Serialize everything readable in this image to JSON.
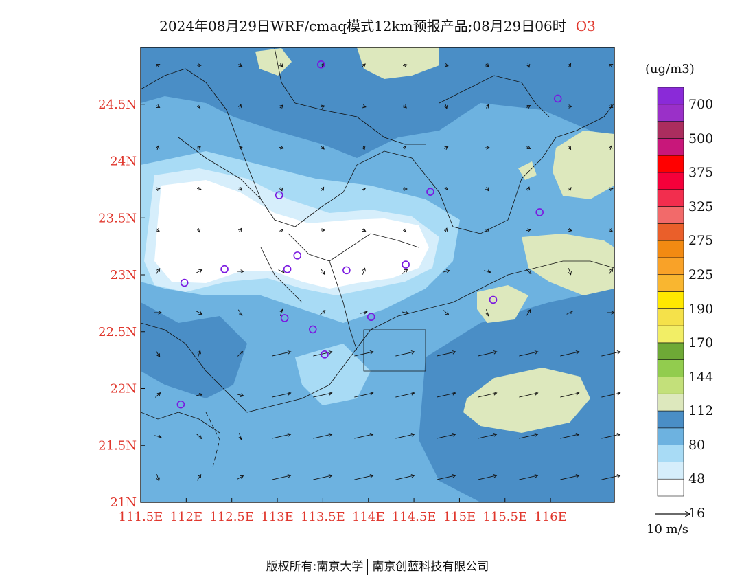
{
  "title": {
    "text": "2024年08月29日WRF/cmaq模式12km预报产品;08月29日06时",
    "species": "O3"
  },
  "map": {
    "lon_range": [
      111.5,
      116.7
    ],
    "lat_range": [
      21.0,
      25.0
    ],
    "lon_ticks": [
      "111.5E",
      "112E",
      "112.5E",
      "113E",
      "113.5E",
      "114E",
      "114.5E",
      "115E",
      "115.5E",
      "116E"
    ],
    "lat_ticks": [
      "21N",
      "21.5N",
      "22N",
      "22.5N",
      "23N",
      "23.5N",
      "24N",
      "24.5N"
    ],
    "station_markers": [
      [
        113.48,
        24.85
      ],
      [
        116.08,
        24.55
      ],
      [
        113.02,
        23.7
      ],
      [
        114.68,
        23.73
      ],
      [
        115.88,
        23.55
      ],
      [
        112.42,
        23.05
      ],
      [
        113.22,
        23.17
      ],
      [
        113.11,
        23.05
      ],
      [
        113.76,
        23.04
      ],
      [
        114.41,
        23.09
      ],
      [
        111.98,
        22.93
      ],
      [
        113.08,
        22.62
      ],
      [
        113.39,
        22.52
      ],
      [
        114.03,
        22.63
      ],
      [
        115.37,
        22.78
      ],
      [
        113.52,
        22.3
      ],
      [
        111.94,
        21.86
      ]
    ]
  },
  "colorbar": {
    "unit": "(ug/m3)",
    "labels": [
      "700",
      "500",
      "375",
      "325",
      "275",
      "225",
      "190",
      "170",
      "144",
      "112",
      "80",
      "48",
      "16"
    ],
    "colors": [
      "#ffffff",
      "#d6eefb",
      "#a8dbf5",
      "#6db2e0",
      "#4a8ec6",
      "#dde8bd",
      "#c3e07a",
      "#92cc4e",
      "#6ea936",
      "#f2ee66",
      "#f5e14a",
      "#ffe800",
      "#f9b630",
      "#f9a228",
      "#f28a12",
      "#ea5f2a",
      "#f26a6a",
      "#f22e4e",
      "#f5003a",
      "#ff0000",
      "#c8177a",
      "#ab2d5e",
      "#9a30c8",
      "#8a2ad8"
    ]
  },
  "wind_reference": {
    "label": "10 m/s"
  },
  "copyright": {
    "owner": "版权所有:南京大学",
    "company": "南京创蓝科技有限公司"
  }
}
